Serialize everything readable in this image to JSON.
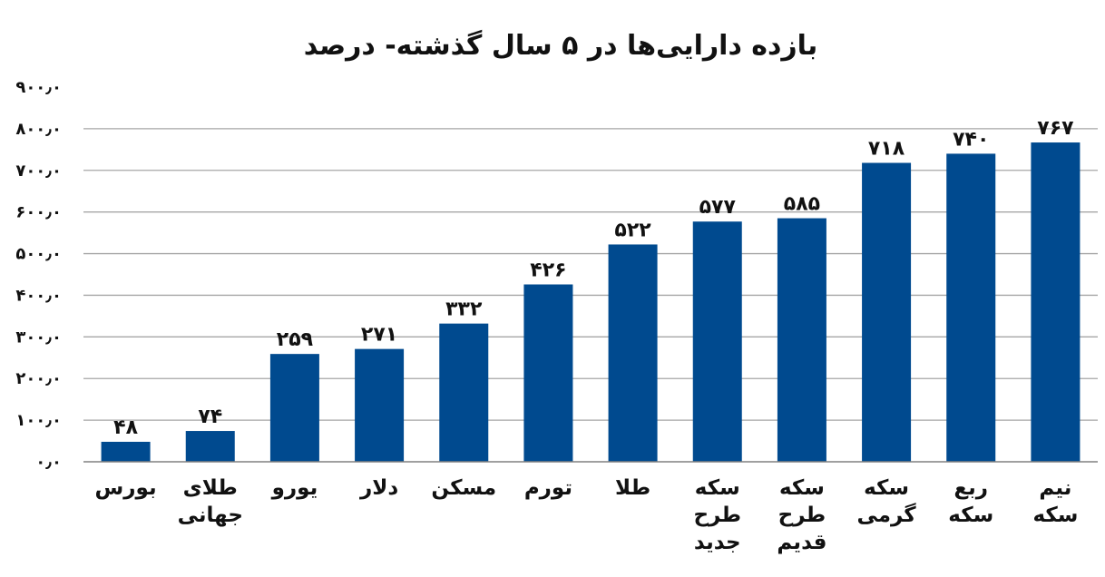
{
  "chart_data": {
    "type": "bar",
    "title": "بازده دارایی‌ها در ۵ سال گذشته- درصد",
    "categories": [
      [
        "بورس"
      ],
      [
        "طلای",
        "جهانی"
      ],
      [
        "یورو"
      ],
      [
        "دلار"
      ],
      [
        "مسکن"
      ],
      [
        "تورم"
      ],
      [
        "طلا"
      ],
      [
        "سکه",
        "طرح",
        "جدید"
      ],
      [
        "سکه",
        "طرح",
        "قدیم"
      ],
      [
        "سکه",
        "گرمی"
      ],
      [
        "ربع",
        "سکه"
      ],
      [
        "نیم",
        "سکه"
      ]
    ],
    "values": [
      48,
      74,
      259,
      271,
      332,
      426,
      522,
      577,
      585,
      718,
      740,
      767
    ],
    "data_labels": [
      "۴۸",
      "۷۴",
      "۲۵۹",
      "۲۷۱",
      "۳۳۲",
      "۴۲۶",
      "۵۲۲",
      "۵۷۷",
      "۵۸۵",
      "۷۱۸",
      "۷۴۰",
      "۷۶۷"
    ],
    "y_ticks": [
      0,
      100,
      200,
      300,
      400,
      500,
      600,
      700,
      800,
      900
    ],
    "y_tick_labels": [
      "۰٫۰",
      "۱۰۰٫۰",
      "۲۰۰٫۰",
      "۳۰۰٫۰",
      "۴۰۰٫۰",
      "۵۰۰٫۰",
      "۶۰۰٫۰",
      "۷۰۰٫۰",
      "۸۰۰٫۰",
      "۹۰۰٫۰"
    ],
    "ylim": [
      0,
      900
    ],
    "xlabel": "",
    "ylabel": "",
    "grid": true,
    "legend": "none",
    "bar_color": "#004a8f"
  }
}
